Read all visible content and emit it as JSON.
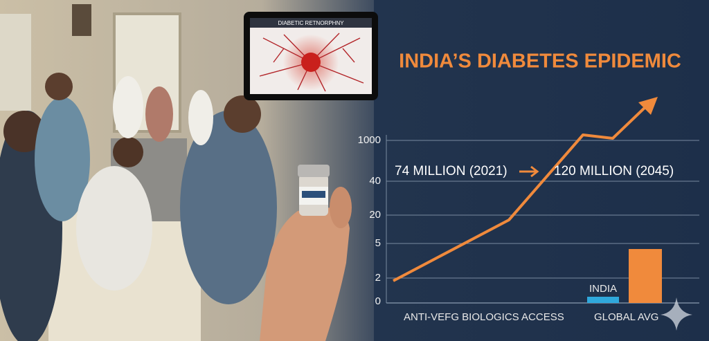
{
  "inset": {
    "caption": "DIABETIC RETNORPHNY"
  },
  "title": "INDIA’S DIABETES EPIDEMIC",
  "annotations": {
    "from": "74 MILLION (2021)",
    "to": "120 MILLION (2045)"
  },
  "axis_labels": [
    "1000",
    "40",
    "20",
    "5",
    "2",
    "0"
  ],
  "bar_labels": {
    "india": "INDIA",
    "left": "ANTI-VEFG BIOLOGICS ACCESS",
    "right": "GLOBAL AVG"
  }
}
